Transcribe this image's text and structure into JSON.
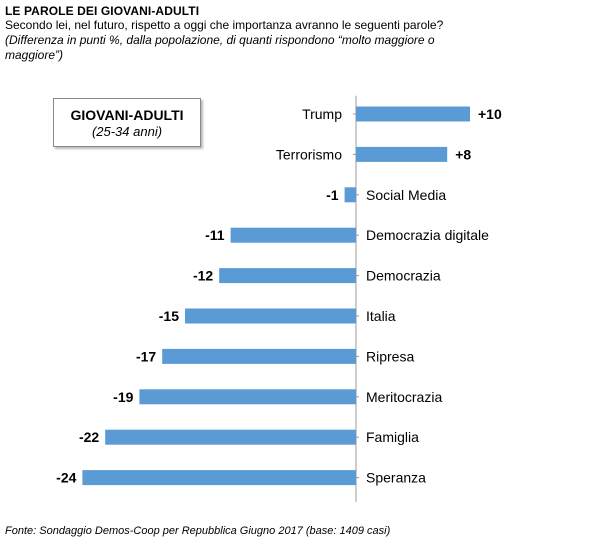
{
  "header": {
    "title": "LE PAROLE DEI GIOVANI-ADULTI",
    "subtitle": "Secondo lei, nel futuro, rispetto a oggi che importanza avranno le seguenti parole?",
    "note_line1": "(Differenza  in punti %, dalla popolazione,  di quanti rispondono “molto maggiore o",
    "note_line2": "maggiore”)"
  },
  "group_box": {
    "title": "GIOVANI-ADULTI",
    "subtitle": "(25-34 anni)"
  },
  "footer": {
    "source": "Fonte: Sondaggio Demos-Coop per Repubblica Giugno 2017 (base: 1409 casi)"
  },
  "colors": {
    "bar": "#5b9bd5",
    "axis": "#999999"
  },
  "chart_data": {
    "type": "bar",
    "orientation": "horizontal",
    "categories": [
      "Trump",
      "Terrorismo",
      "Social Media",
      "Democrazia digitale",
      "Democrazia",
      "Italia",
      "Ripresa",
      "Meritocrazia",
      "Famiglia",
      "Speranza"
    ],
    "values": [
      10,
      8,
      -1,
      -11,
      -12,
      -15,
      -17,
      -19,
      -22,
      -24
    ],
    "value_labels": [
      "+10",
      "+8",
      "-1",
      "-11",
      "-12",
      "-15",
      "-17",
      "-19",
      "-22",
      "-24"
    ],
    "title": "LE PAROLE DEI GIOVANI-ADULTI",
    "xlabel": "",
    "ylabel": "",
    "xlim": [
      -24,
      10
    ],
    "grid": false,
    "legend": "none"
  }
}
